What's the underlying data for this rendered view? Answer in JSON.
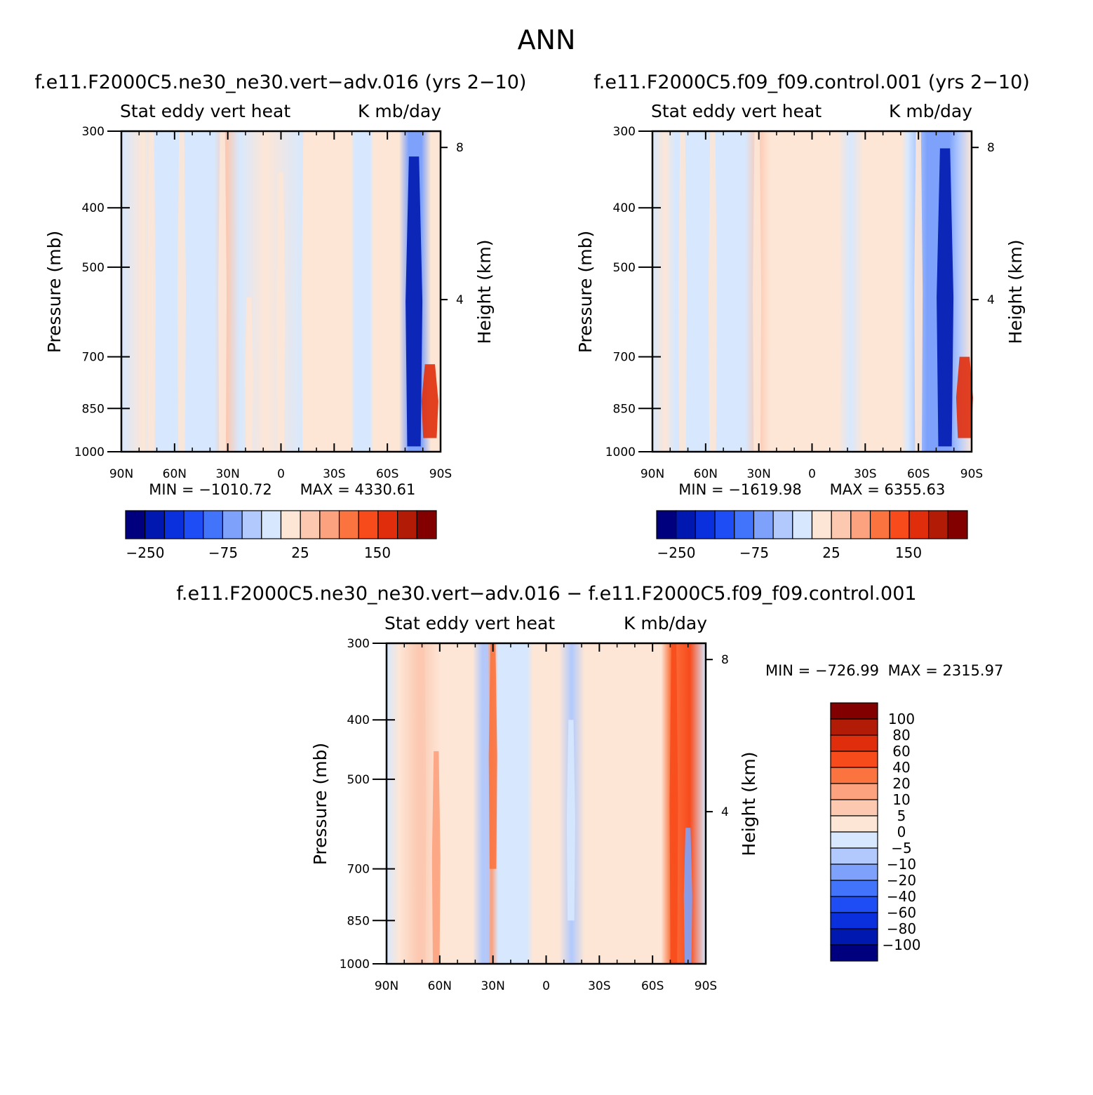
{
  "main_title": "ANN",
  "colors": {
    "absolute_scale": [
      "#00007f",
      "#0018b0",
      "#0a2fdc",
      "#1e4cf5",
      "#4173fb",
      "#7ea2fb",
      "#b1c9fd",
      "#d7e8fe",
      "#fde6d6",
      "#fcc8b0",
      "#fca27e",
      "#fb743f",
      "#f84b1c",
      "#e02e0c",
      "#b21c07",
      "#830000"
    ],
    "difference_scale": [
      "#00007f",
      "#0018b0",
      "#0a2fdc",
      "#1e4cf5",
      "#4173fb",
      "#7ea2fb",
      "#b1c9fd",
      "#d7e8fe",
      "#fde6d6",
      "#fcc8b0",
      "#fca27e",
      "#fb743f",
      "#f84b1c",
      "#e02e0c",
      "#b21c07",
      "#830000"
    ]
  },
  "chart_data": [
    {
      "type": "heatmap",
      "title": "f.e11.F2000C5.ne30_ne30.vert−adv.016 (yrs 2−10)",
      "subtitle_left": "Stat eddy vert heat",
      "subtitle_right": "K mb/day",
      "xlabel": "",
      "ylabel": "Pressure (mb)",
      "ylabel_right": "Height (km)",
      "x_ticks": [
        "90N",
        "60N",
        "30N",
        "0",
        "30S",
        "60S",
        "90S"
      ],
      "y_ticks": [
        300,
        400,
        500,
        700,
        850,
        1000
      ],
      "y_right_ticks": [
        8,
        4
      ],
      "y_scale": "log",
      "xlim": [
        90,
        -90
      ],
      "ylim": [
        1000,
        300
      ],
      "min_label": "MIN = −1010.72",
      "max_label": "MAX = 4330.61",
      "min": -1010.72,
      "max": 4330.61,
      "colorbar_labels": [
        "−250",
        "−75",
        "25",
        "150"
      ],
      "features": [
        {
          "lat": 73,
          "value": 5,
          "p_top": 300,
          "p_bot": 1000
        },
        {
          "lat": 56,
          "value": 5,
          "p_top": 300,
          "p_bot": 1000
        },
        {
          "lat": 33,
          "value": 20,
          "p_top": 300,
          "p_bot": 1000
        },
        {
          "lat": 18,
          "value": 5,
          "p_top": 560,
          "p_bot": 1000
        },
        {
          "lat": 0,
          "value": 5,
          "p_top": 350,
          "p_bot": 1000
        },
        {
          "lat": -14,
          "value": 5,
          "p_top": 300,
          "p_bot": 1000
        },
        {
          "lat": -60,
          "value": 5,
          "p_top": 300,
          "p_bot": 1000
        },
        {
          "lat": -75,
          "value": -250,
          "p_top": 330,
          "p_bot": 980
        },
        {
          "lat": -84,
          "value": 150,
          "p_top": 720,
          "p_bot": 950
        }
      ]
    },
    {
      "type": "heatmap",
      "title": "f.e11.F2000C5.f09_f09.control.001 (yrs 2−10)",
      "subtitle_left": "Stat eddy vert heat",
      "subtitle_right": "K mb/day",
      "xlabel": "",
      "ylabel": "Pressure (mb)",
      "ylabel_right": "Height (km)",
      "x_ticks": [
        "90N",
        "60N",
        "30N",
        "0",
        "30S",
        "60S",
        "90S"
      ],
      "y_ticks": [
        300,
        400,
        500,
        700,
        850,
        1000
      ],
      "y_right_ticks": [
        8,
        4
      ],
      "y_scale": "log",
      "xlim": [
        90,
        -90
      ],
      "ylim": [
        1000,
        300
      ],
      "min_label": "MIN = −1619.98",
      "max_label": "MAX = 6355.63",
      "min": -1619.98,
      "max": 6355.63,
      "colorbar_labels": [
        "−250",
        "−75",
        "25",
        "150"
      ],
      "features": [
        {
          "lat": 73,
          "value": 5,
          "p_top": 300,
          "p_bot": 1000
        },
        {
          "lat": 56,
          "value": 5,
          "p_top": 300,
          "p_bot": 1000
        },
        {
          "lat": 31,
          "value": 20,
          "p_top": 300,
          "p_bot": 1000
        },
        {
          "lat": 18,
          "value": 5,
          "p_top": 560,
          "p_bot": 1000
        },
        {
          "lat": 0,
          "value": 5,
          "p_top": 350,
          "p_bot": 1000
        },
        {
          "lat": -14,
          "value": 5,
          "p_top": 300,
          "p_bot": 1000
        },
        {
          "lat": -60,
          "value": 5,
          "p_top": 300,
          "p_bot": 1000
        },
        {
          "lat": -75,
          "value": -250,
          "p_top": 320,
          "p_bot": 980
        },
        {
          "lat": -86,
          "value": 150,
          "p_top": 700,
          "p_bot": 950
        }
      ]
    },
    {
      "type": "heatmap",
      "title": "f.e11.F2000C5.ne30_ne30.vert−adv.016 − f.e11.F2000C5.f09_f09.control.001",
      "subtitle_left": "Stat eddy vert heat",
      "subtitle_right": "K mb/day",
      "xlabel": "",
      "ylabel": "Pressure (mb)",
      "ylabel_right": "Height (km)",
      "x_ticks": [
        "90N",
        "60N",
        "30N",
        "0",
        "30S",
        "60S",
        "90S"
      ],
      "y_ticks": [
        300,
        400,
        500,
        700,
        850,
        1000
      ],
      "y_right_ticks": [
        8,
        4
      ],
      "y_scale": "log",
      "xlim": [
        90,
        -90
      ],
      "ylim": [
        1000,
        300
      ],
      "min_label": "MIN = −726.99",
      "max_label": "MAX = 2315.97",
      "min": -726.99,
      "max": 2315.97,
      "colorbar_labels": [
        "100",
        "80",
        "60",
        "40",
        "20",
        "10",
        "5",
        "0",
        "−5",
        "−10",
        "−20",
        "−40",
        "−60",
        "−80",
        "−100"
      ],
      "features": [
        {
          "lat": 70,
          "value": 5,
          "p_top": 300,
          "p_bot": 1000
        },
        {
          "lat": 62,
          "value": 10,
          "p_top": 450,
          "p_bot": 1000
        },
        {
          "lat": 34,
          "value": -10,
          "p_top": 300,
          "p_bot": 1000
        },
        {
          "lat": 30,
          "value": 20,
          "p_top": 300,
          "p_bot": 700
        },
        {
          "lat": -14,
          "value": -5,
          "p_top": 400,
          "p_bot": 850
        },
        {
          "lat": -72,
          "value": 40,
          "p_top": 300,
          "p_bot": 1000
        },
        {
          "lat": -80,
          "value": -20,
          "p_top": 600,
          "p_bot": 1000
        }
      ]
    }
  ]
}
